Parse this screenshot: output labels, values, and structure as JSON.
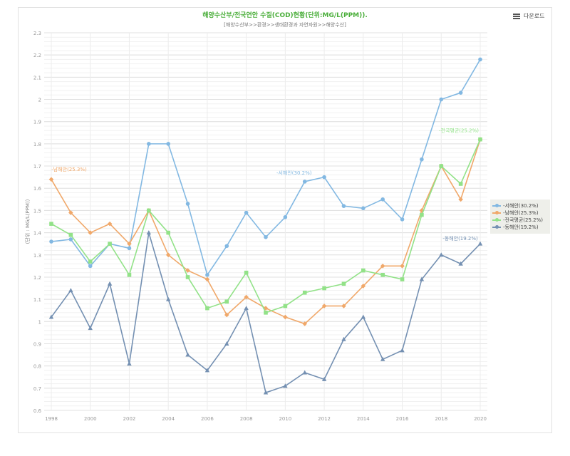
{
  "header": {
    "download_label": "다운로드",
    "download_icon": "hamburger-menu-icon"
  },
  "chart_data": {
    "type": "line",
    "title": "해양수산부/전국연안 수질(COD)현황(단위:MG/L(PPM)).",
    "subtitle": "[해양수산부>>환경>>생태환경과 자연자원>>해양수산]",
    "xlabel": "",
    "ylabel": "(단위 : MG/L(PPM))",
    "ylim": [
      0.6,
      2.3
    ],
    "yticks": [
      "0.6",
      "0.7",
      "0.8",
      "0.9",
      "1",
      "1.1",
      "1.2",
      "1.3",
      "1.4",
      "1.5",
      "1.6",
      "1.7",
      "1.8",
      "1.9",
      "2",
      "2.1",
      "2.2",
      "2.3"
    ],
    "x": [
      1998,
      1999,
      2000,
      2001,
      2002,
      2003,
      2004,
      2005,
      2006,
      2007,
      2008,
      2009,
      2010,
      2011,
      2012,
      2013,
      2014,
      2015,
      2016,
      2017,
      2018,
      2019,
      2020
    ],
    "xticks": [
      "1998",
      "2000",
      "2002",
      "2004",
      "2006",
      "2008",
      "2010",
      "2012",
      "2014",
      "2016",
      "2018",
      "2020"
    ],
    "grid": true,
    "legend_position": "right",
    "series": [
      {
        "name": "-서해안(30.2%)",
        "color": "#82b8e2",
        "marker": "circle",
        "values": [
          1.36,
          1.37,
          1.25,
          1.35,
          1.33,
          1.8,
          1.8,
          1.53,
          1.21,
          1.34,
          1.49,
          1.38,
          1.47,
          1.63,
          1.65,
          1.52,
          1.51,
          1.55,
          1.46,
          1.73,
          2.0,
          2.03,
          2.18
        ],
        "annotation": {
          "text": "-서해안(30.2%)",
          "year": 2011
        }
      },
      {
        "name": "-남해안(25.3%)",
        "color": "#f0a86a",
        "marker": "diamond",
        "values": [
          1.64,
          1.49,
          1.4,
          1.44,
          1.35,
          1.5,
          1.3,
          1.23,
          1.19,
          1.03,
          1.11,
          1.06,
          1.02,
          0.99,
          1.07,
          1.07,
          1.16,
          1.25,
          1.25,
          1.5,
          1.7,
          1.55,
          1.82
        ],
        "annotation": {
          "text": "-남해안(25.3%)",
          "year": 1998
        }
      },
      {
        "name": "-전국평균(25.2%)",
        "color": "#92e288",
        "marker": "square",
        "values": [
          1.44,
          1.39,
          1.27,
          1.35,
          1.21,
          1.5,
          1.4,
          1.2,
          1.06,
          1.09,
          1.22,
          1.04,
          1.07,
          1.13,
          1.15,
          1.17,
          1.23,
          1.21,
          1.19,
          1.48,
          1.7,
          1.62,
          1.82
        ],
        "annotation": {
          "text": "-전국평균(25.2%)",
          "year": 2020
        }
      },
      {
        "name": "-동해안(19.2%)",
        "color": "#7490b2",
        "marker": "triangle",
        "values": [
          1.02,
          1.14,
          0.97,
          1.17,
          0.81,
          1.4,
          1.1,
          0.85,
          0.78,
          0.9,
          1.06,
          0.68,
          0.71,
          0.77,
          0.74,
          0.92,
          1.02,
          0.83,
          0.87,
          1.19,
          1.3,
          1.26,
          1.35
        ],
        "annotation": {
          "text": "-동해안(19.2%)",
          "year": 2020
        }
      }
    ]
  }
}
